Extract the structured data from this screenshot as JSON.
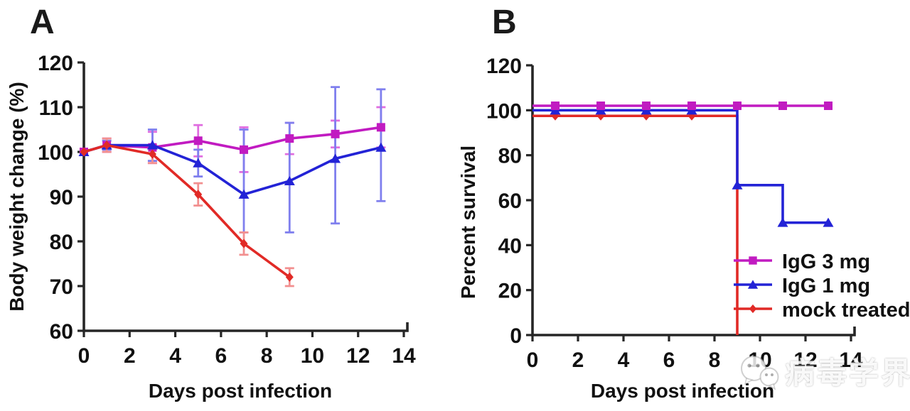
{
  "figure": {
    "panel_a_label": "A",
    "panel_b_label": "B"
  },
  "legend": {
    "position": "bottom-right-of-panel-B",
    "entries": [
      {
        "label": "IgG 3 mg",
        "color": "#C11BC1",
        "marker": "square"
      },
      {
        "label": "IgG 1 mg",
        "color": "#2323D6",
        "marker": "triangle"
      },
      {
        "label": "mock treated",
        "color": "#E12A26",
        "marker": "diamond"
      }
    ]
  },
  "watermark": {
    "icon": "wechat-icon",
    "text": "病毒学界"
  },
  "colors": {
    "igg3": "#C11BC1",
    "igg1": "#2323D6",
    "mock": "#E12A26",
    "igg3_error": "#E06EE0",
    "igg1_error": "#7F7FEE",
    "mock_error": "#F29090",
    "axis": "#262626"
  },
  "chart_data": [
    {
      "panel": "A",
      "type": "line",
      "title": "",
      "xlabel": "Days post infection",
      "ylabel": "Body weight change (%)",
      "xlim": [
        0,
        14
      ],
      "ylim": [
        60,
        120
      ],
      "xticks": [
        0,
        2,
        4,
        6,
        8,
        10,
        12,
        14
      ],
      "yticks": [
        60,
        70,
        80,
        90,
        100,
        110,
        120
      ],
      "grid": false,
      "series": [
        {
          "name": "IgG 3 mg",
          "color": "#C11BC1",
          "err_color": "#E06EE0",
          "marker": "square",
          "x": [
            0,
            1,
            3,
            5,
            7,
            9,
            11,
            13
          ],
          "y": [
            100,
            101.5,
            101,
            102.5,
            100.5,
            103,
            104,
            105.5
          ],
          "err_up": [
            0,
            1.5,
            3.5,
            3.5,
            5,
            3.5,
            3,
            4.5
          ],
          "err_down": [
            0,
            1.5,
            3.5,
            3.5,
            5,
            3.5,
            3,
            4.5
          ]
        },
        {
          "name": "IgG 1 mg",
          "color": "#2323D6",
          "err_color": "#7F7FEE",
          "marker": "triangle",
          "x": [
            0,
            1,
            3,
            5,
            7,
            9,
            11,
            13
          ],
          "y": [
            100,
            101.5,
            101.5,
            97.5,
            90.5,
            93.5,
            98.5,
            101
          ],
          "err_up": [
            0,
            1,
            3.5,
            3,
            14.5,
            13,
            16,
            13
          ],
          "err_down": [
            0,
            1,
            3.5,
            3,
            8.5,
            11.5,
            14.5,
            12
          ]
        },
        {
          "name": "mock treated",
          "color": "#E12A26",
          "err_color": "#F29090",
          "marker": "diamond",
          "x": [
            0,
            1,
            3,
            5,
            7,
            9
          ],
          "y": [
            100,
            101.5,
            99.5,
            90.5,
            79.5,
            72
          ],
          "err_up": [
            0,
            1.5,
            2,
            2.5,
            2.5,
            2
          ],
          "err_down": [
            0,
            1.5,
            2,
            2.5,
            2.5,
            2
          ]
        }
      ]
    },
    {
      "panel": "B",
      "type": "step",
      "title": "",
      "xlabel": "Days post infection",
      "ylabel": "Percent survival",
      "xlim": [
        0,
        14
      ],
      "ylim": [
        0,
        120
      ],
      "xticks": [
        0,
        2,
        4,
        6,
        8,
        10,
        12,
        14
      ],
      "yticks": [
        0,
        20,
        40,
        60,
        80,
        100,
        120
      ],
      "grid": false,
      "series": [
        {
          "name": "mock treated",
          "color": "#E12A26",
          "marker": "diamond",
          "display_offset": -2.5,
          "survival_pct": [
            [
              0,
              100
            ],
            [
              9,
              100
            ],
            [
              9,
              0
            ]
          ],
          "marker_points": [
            [
              1,
              100
            ],
            [
              3,
              100
            ],
            [
              5,
              100
            ],
            [
              7,
              100
            ]
          ]
        },
        {
          "name": "IgG 1 mg",
          "color": "#2323D6",
          "marker": "triangle",
          "display_offset": 0,
          "survival_pct": [
            [
              0,
              100
            ],
            [
              9,
              100
            ],
            [
              9,
              66.7
            ],
            [
              11,
              66.7
            ],
            [
              11,
              50
            ],
            [
              13,
              50
            ]
          ],
          "marker_points": [
            [
              1,
              100
            ],
            [
              3,
              100
            ],
            [
              5,
              100
            ],
            [
              7,
              100
            ],
            [
              9,
              66.7
            ],
            [
              11,
              50
            ],
            [
              13,
              50
            ]
          ]
        },
        {
          "name": "IgG 3 mg",
          "color": "#C11BC1",
          "marker": "square",
          "display_offset": 2,
          "survival_pct": [
            [
              0,
              100
            ],
            [
              13,
              100
            ]
          ],
          "marker_points": [
            [
              1,
              100
            ],
            [
              3,
              100
            ],
            [
              5,
              100
            ],
            [
              7,
              100
            ],
            [
              9,
              100
            ],
            [
              11,
              100
            ],
            [
              13,
              100
            ]
          ]
        }
      ]
    }
  ]
}
